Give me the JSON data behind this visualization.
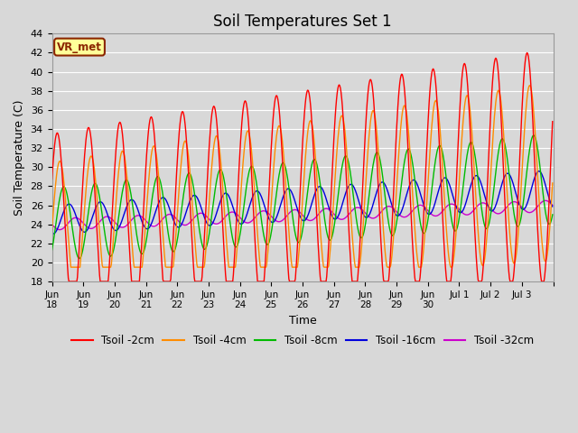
{
  "title": "Soil Temperatures Set 1",
  "xlabel": "Time",
  "ylabel": "Soil Temperature (C)",
  "ylim": [
    18,
    44
  ],
  "yticks": [
    18,
    20,
    22,
    24,
    26,
    28,
    30,
    32,
    34,
    36,
    38,
    40,
    42,
    44
  ],
  "fig_bg_color": "#d8d8d8",
  "plot_bg_color": "#d8d8d8",
  "legend_label": "VR_met",
  "series_colors": {
    "Tsoil -2cm": "#ff0000",
    "Tsoil -4cm": "#ff8c00",
    "Tsoil -8cm": "#00bb00",
    "Tsoil -16cm": "#0000dd",
    "Tsoil -32cm": "#cc00cc"
  },
  "title_fontsize": 12,
  "axis_fontsize": 9,
  "tick_fontsize": 8,
  "lw": 1.0
}
